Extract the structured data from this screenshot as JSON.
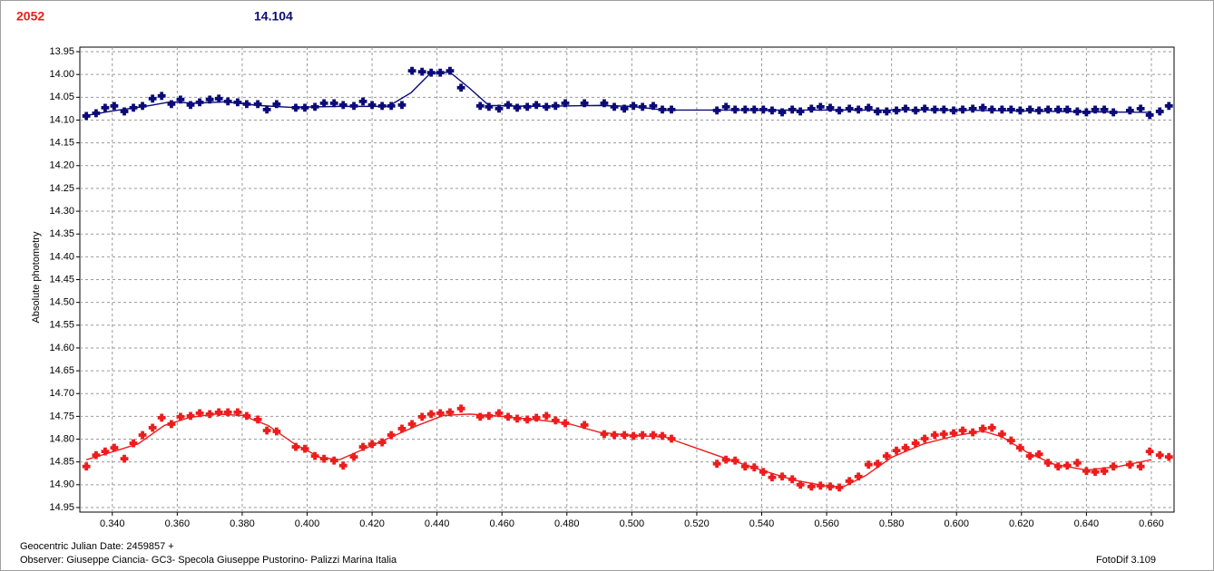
{
  "chart_data": {
    "type": "scatter",
    "ylabel": "Absolute photometry",
    "xlabel": "Geocentric Julian Date: 2459857 +",
    "observer": "Observer: Giuseppe Ciancia- GC3- Specola Giuseppe Pustorino- Palizzi Marina Italia",
    "software": "FotoDif 3.109",
    "xlim": [
      0.33,
      0.667
    ],
    "ylim": [
      13.94,
      14.96
    ],
    "y_inverted": true,
    "grid": true,
    "xticks": [
      {
        "value": 0.34,
        "label": "0.340"
      },
      {
        "value": 0.36,
        "label": "0.360"
      },
      {
        "value": 0.38,
        "label": "0.380"
      },
      {
        "value": 0.4,
        "label": "0.400"
      },
      {
        "value": 0.42,
        "label": "0.420"
      },
      {
        "value": 0.44,
        "label": "0.440"
      },
      {
        "value": 0.46,
        "label": "0.460"
      },
      {
        "value": 0.48,
        "label": "0.480"
      },
      {
        "value": 0.5,
        "label": "0.500"
      },
      {
        "value": 0.52,
        "label": "0.520"
      },
      {
        "value": 0.54,
        "label": "0.540"
      },
      {
        "value": 0.56,
        "label": "0.560"
      },
      {
        "value": 0.58,
        "label": "0.580"
      },
      {
        "value": 0.6,
        "label": "0.600"
      },
      {
        "value": 0.62,
        "label": "0.620"
      },
      {
        "value": 0.64,
        "label": "0.640"
      },
      {
        "value": 0.66,
        "label": "0.660"
      }
    ],
    "yticks": [
      13.95,
      {
        "value": 14,
        "label": "14.00"
      },
      14.05,
      {
        "value": 14.1,
        "label": "14.10"
      },
      14.15,
      {
        "value": 14.2,
        "label": "14.20"
      },
      14.25,
      {
        "value": 14.3,
        "label": "14.30"
      },
      14.35,
      {
        "value": 14.4,
        "label": "14.40"
      },
      14.45,
      {
        "value": 14.5,
        "label": "14.50"
      },
      14.55,
      {
        "value": 14.6,
        "label": "14.60"
      },
      14.65,
      {
        "value": 14.7,
        "label": "14.70"
      },
      14.75,
      {
        "value": 14.8,
        "label": "14.80"
      },
      14.85,
      {
        "value": 14.9,
        "label": "14.90"
      },
      14.95
    ],
    "x": [
      0.332,
      0.335,
      0.3378,
      0.3406,
      0.3437,
      0.3465,
      0.3493,
      0.3524,
      0.3552,
      0.3582,
      0.361,
      0.3641,
      0.3669,
      0.37,
      0.3728,
      0.3756,
      0.3786,
      0.3814,
      0.3848,
      0.3876,
      0.3906,
      0.3965,
      0.3993,
      0.4024,
      0.4052,
      0.4083,
      0.4111,
      0.4144,
      0.4172,
      0.42,
      0.4231,
      0.4259,
      0.4292,
      0.4323,
      0.4354,
      0.4382,
      0.441,
      0.444,
      0.4474,
      0.4533,
      0.456,
      0.4591,
      0.4619,
      0.4647,
      0.4678,
      0.4706,
      0.4737,
      0.4765,
      0.4795,
      0.4854,
      0.4915,
      0.4946,
      0.4977,
      0.5005,
      0.5033,
      0.5066,
      0.5094,
      0.5122,
      0.5262,
      0.529,
      0.5318,
      0.5349,
      0.5377,
      0.5405,
      0.5432,
      0.5463,
      0.5494,
      0.5519,
      0.5553,
      0.5581,
      0.5611,
      0.5639,
      0.567,
      0.5698,
      0.5729,
      0.5757,
      0.5785,
      0.5815,
      0.5843,
      0.5874,
      0.5902,
      0.5933,
      0.5961,
      0.5991,
      0.6019,
      0.605,
      0.6081,
      0.6109,
      0.614,
      0.6168,
      0.6196,
      0.6226,
      0.6254,
      0.6282,
      0.6313,
      0.6341,
      0.6372,
      0.64,
      0.6427,
      0.6455,
      0.6483,
      0.6534,
      0.6567,
      0.6595,
      0.6626,
      0.6654
    ],
    "series": [
      {
        "name": "2052",
        "color": "#ee1c1c",
        "values": [
          14.86,
          14.835,
          14.827,
          14.819,
          14.843,
          14.809,
          14.791,
          14.775,
          14.753,
          14.767,
          14.751,
          14.749,
          14.743,
          14.745,
          14.741,
          14.741,
          14.741,
          14.749,
          14.757,
          14.781,
          14.783,
          14.817,
          14.821,
          14.837,
          14.843,
          14.847,
          14.858,
          14.839,
          14.817,
          14.811,
          14.807,
          14.791,
          14.777,
          14.767,
          14.751,
          14.745,
          14.743,
          14.741,
          14.733,
          14.751,
          14.749,
          14.743,
          14.751,
          14.755,
          14.757,
          14.753,
          14.749,
          14.759,
          14.765,
          14.769,
          14.789,
          14.791,
          14.791,
          14.793,
          14.791,
          14.791,
          14.793,
          14.799,
          14.854,
          14.845,
          14.847,
          14.86,
          14.862,
          14.872,
          14.884,
          14.882,
          14.888,
          14.9,
          14.904,
          14.902,
          14.904,
          14.906,
          14.892,
          14.882,
          14.856,
          14.854,
          14.837,
          14.825,
          14.819,
          14.809,
          14.799,
          14.791,
          14.789,
          14.787,
          14.781,
          14.785,
          14.777,
          14.775,
          14.789,
          14.803,
          14.819,
          14.837,
          14.833,
          14.852,
          14.86,
          14.858,
          14.852,
          14.87,
          14.872,
          14.87,
          14.86,
          14.856,
          14.86,
          14.827,
          14.835,
          14.839
        ],
        "fit": {
          "x": [
            0.332,
            0.34,
            0.348,
            0.356,
            0.364,
            0.372,
            0.38,
            0.388,
            0.396,
            0.404,
            0.41,
            0.418,
            0.426,
            0.434,
            0.442,
            0.45,
            0.46,
            0.47,
            0.48,
            0.49,
            0.5,
            0.51,
            0.52,
            0.53,
            0.54,
            0.55,
            0.56,
            0.565,
            0.572,
            0.58,
            0.59,
            0.6,
            0.608,
            0.614,
            0.622,
            0.63,
            0.64,
            0.65,
            0.66
          ],
          "values": [
            14.845,
            14.828,
            14.81,
            14.77,
            14.752,
            14.745,
            14.748,
            14.77,
            14.81,
            14.84,
            14.845,
            14.82,
            14.795,
            14.77,
            14.748,
            14.745,
            14.75,
            14.757,
            14.765,
            14.785,
            14.792,
            14.795,
            14.82,
            14.845,
            14.868,
            14.89,
            14.903,
            14.905,
            14.88,
            14.84,
            14.81,
            14.792,
            14.782,
            14.795,
            14.83,
            14.855,
            14.868,
            14.86,
            14.845
          ]
        }
      },
      {
        "name": "14.104",
        "color": "#0a0a78",
        "values": [
          14.091,
          14.085,
          14.073,
          14.069,
          14.081,
          14.073,
          14.069,
          14.053,
          14.047,
          14.065,
          14.055,
          14.067,
          14.061,
          14.055,
          14.053,
          14.059,
          14.061,
          14.065,
          14.065,
          14.077,
          14.065,
          14.073,
          14.073,
          14.071,
          14.063,
          14.063,
          14.067,
          14.069,
          14.059,
          14.067,
          14.069,
          14.069,
          14.067,
          13.992,
          13.994,
          13.996,
          13.996,
          13.992,
          14.029,
          14.069,
          14.071,
          14.075,
          14.067,
          14.073,
          14.071,
          14.067,
          14.071,
          14.069,
          14.063,
          14.063,
          14.063,
          14.071,
          14.075,
          14.069,
          14.071,
          14.069,
          14.077,
          14.077,
          14.079,
          14.071,
          14.077,
          14.077,
          14.077,
          14.077,
          14.079,
          14.083,
          14.077,
          14.081,
          14.075,
          14.071,
          14.073,
          14.079,
          14.075,
          14.077,
          14.073,
          14.081,
          14.081,
          14.079,
          14.075,
          14.079,
          14.075,
          14.077,
          14.077,
          14.079,
          14.077,
          14.075,
          14.073,
          14.077,
          14.077,
          14.077,
          14.079,
          14.077,
          14.079,
          14.077,
          14.077,
          14.077,
          14.081,
          14.083,
          14.077,
          14.077,
          14.083,
          14.079,
          14.075,
          14.089,
          14.081,
          14.069
        ],
        "fit": {
          "x": [
            0.332,
            0.34,
            0.35,
            0.358,
            0.365,
            0.375,
            0.385,
            0.395,
            0.41,
            0.425,
            0.432,
            0.438,
            0.444,
            0.45,
            0.456,
            0.47,
            0.49,
            0.5,
            0.51,
            0.53,
            0.56,
            0.6,
            0.64,
            0.66
          ],
          "values": [
            14.09,
            14.08,
            14.07,
            14.06,
            14.063,
            14.06,
            14.068,
            14.072,
            14.07,
            14.07,
            14.04,
            13.997,
            13.995,
            14.03,
            14.068,
            14.07,
            14.068,
            14.07,
            14.078,
            14.078,
            14.078,
            14.078,
            14.082,
            14.083
          ]
        }
      }
    ]
  }
}
